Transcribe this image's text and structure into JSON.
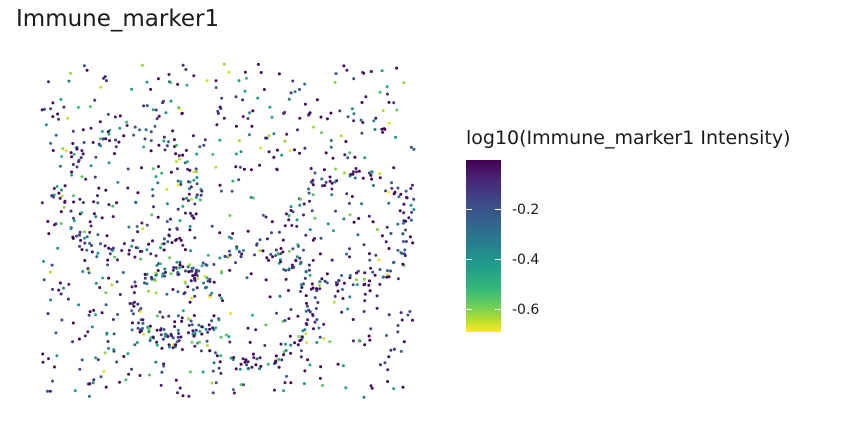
{
  "chart_data": {
    "type": "scatter",
    "title": "Immune_marker1",
    "xlabel": "",
    "ylabel": "",
    "grid": false,
    "legend": {
      "title": "log10(Immune_marker1 Intensity)",
      "placement": "right",
      "type": "colorbar",
      "palette": "viridis",
      "range": [
        -0.69,
        0.0
      ],
      "ticks": [
        {
          "value": -0.2,
          "label": "-0.2"
        },
        {
          "value": -0.4,
          "label": "-0.4"
        },
        {
          "value": -0.6,
          "label": "-0.6"
        }
      ]
    },
    "xlim": [
      0,
      100
    ],
    "ylim": [
      0,
      100
    ],
    "points": {
      "count": 1200,
      "structure": "cells scattered uniformly with denser rings around circular regions",
      "rings": [
        {
          "cx": 23,
          "cy": 61,
          "r": 18
        },
        {
          "cx": 83,
          "cy": 51,
          "r": 16
        },
        {
          "cx": 56,
          "cy": 27,
          "r": 17
        },
        {
          "cx": 36,
          "cy": 28,
          "r": 11
        }
      ],
      "seed": 7,
      "value_range": [
        -0.69,
        0.0
      ]
    }
  }
}
